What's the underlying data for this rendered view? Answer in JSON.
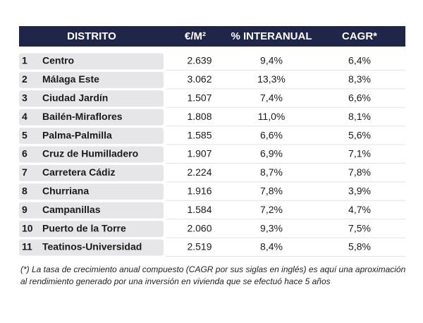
{
  "table": {
    "header": [
      "DISTRITO",
      "€/M²",
      "% INTERANUAL",
      "CAGR*"
    ],
    "rows": [
      [
        "1",
        "Centro",
        "2.639",
        "9,4%",
        "6,4%"
      ],
      [
        "2",
        "Málaga Este",
        "3.062",
        "13,3%",
        "8,3%"
      ],
      [
        "3",
        "Ciudad Jardín",
        "1.507",
        "7,4%",
        "6,6%"
      ],
      [
        "4",
        "Bailén-Miraflores",
        "1.808",
        "11,0%",
        "8,1%"
      ],
      [
        "5",
        "Palma-Palmilla",
        "1.585",
        "6,6%",
        "5,6%"
      ],
      [
        "6",
        "Cruz de Humilladero",
        "1.907",
        "6,9%",
        "7,1%"
      ],
      [
        "7",
        "Carretera Cádiz",
        "2.224",
        "8,7%",
        "7,8%"
      ],
      [
        "8",
        "Churriana",
        "1.916",
        "7,8%",
        "3,9%"
      ],
      [
        "9",
        "Campanillas",
        "1.584",
        "7,2%",
        "4,7%"
      ],
      [
        "10",
        "Puerto de la Torre",
        "2.060",
        "9,3%",
        "7,5%"
      ],
      [
        "11",
        "Teatinos-Universidad",
        "2.519",
        "8,4%",
        "5,8%"
      ]
    ]
  },
  "footnote": [
    "(*) La tasa de crecimiento anual compuesto (CAGR por sus siglas en inglés) es aquí una aproximación",
    "al rendimiento generado por una inversión en vivienda que se efectuó hace 5 años"
  ]
}
